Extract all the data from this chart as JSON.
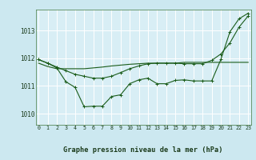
{
  "title": "Graphe pression niveau de la mer (hPa)",
  "bg_color": "#cce8f0",
  "plot_bg_color": "#d8eef5",
  "line_color": "#1a5c1a",
  "grid_color": "#b8d8e0",
  "x_ticks": [
    0,
    1,
    2,
    3,
    4,
    5,
    6,
    7,
    8,
    9,
    10,
    11,
    12,
    13,
    14,
    15,
    16,
    17,
    18,
    19,
    20,
    21,
    22,
    23
  ],
  "ylim": [
    1009.6,
    1013.75
  ],
  "yticks": [
    1010,
    1011,
    1012,
    1013
  ],
  "line1": [
    1011.95,
    1011.82,
    1011.65,
    1011.15,
    1010.95,
    1010.25,
    1010.27,
    1010.27,
    1010.62,
    1010.68,
    1011.08,
    1011.22,
    1011.28,
    1011.08,
    1011.08,
    1011.2,
    1011.22,
    1011.18,
    1011.18,
    1011.18,
    1011.95,
    1012.95,
    1013.42,
    1013.62
  ],
  "line2": [
    1011.82,
    1011.7,
    1011.62,
    1011.62,
    1011.62,
    1011.62,
    1011.65,
    1011.68,
    1011.72,
    1011.75,
    1011.78,
    1011.8,
    1011.82,
    1011.82,
    1011.82,
    1011.82,
    1011.85,
    1011.85,
    1011.85,
    1011.85,
    1011.85,
    1011.85,
    1011.85,
    1011.85
  ],
  "line3": [
    1011.95,
    1011.82,
    1011.68,
    1011.55,
    1011.42,
    1011.35,
    1011.28,
    1011.28,
    1011.35,
    1011.48,
    1011.62,
    1011.72,
    1011.8,
    1011.82,
    1011.82,
    1011.82,
    1011.8,
    1011.8,
    1011.8,
    1011.92,
    1012.15,
    1012.55,
    1013.12,
    1013.52
  ]
}
